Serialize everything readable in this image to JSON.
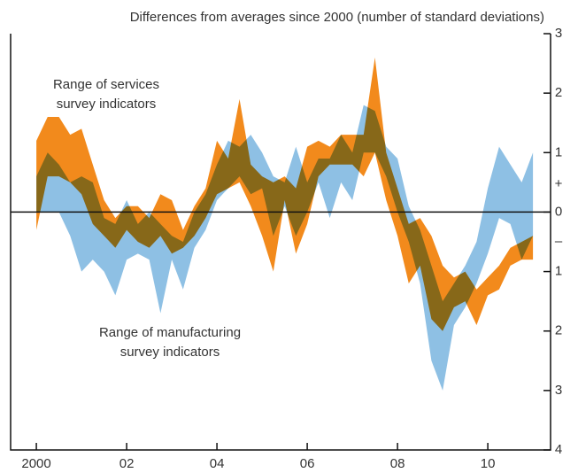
{
  "chart_data": {
    "type": "range-area",
    "title": "Differences from averages since 2000 (number of standard deviations)",
    "x": [
      2000.0,
      2000.25,
      2000.5,
      2000.75,
      2001.0,
      2001.25,
      2001.5,
      2001.75,
      2002.0,
      2002.25,
      2002.5,
      2002.75,
      2003.0,
      2003.25,
      2003.5,
      2003.75,
      2004.0,
      2004.25,
      2004.5,
      2004.75,
      2005.0,
      2005.25,
      2005.5,
      2005.75,
      2006.0,
      2006.25,
      2006.5,
      2006.75,
      2007.0,
      2007.25,
      2007.5,
      2007.75,
      2008.0,
      2008.25,
      2008.5,
      2008.75,
      2009.0,
      2009.25,
      2009.5,
      2009.75,
      2010.0,
      2010.25,
      2010.5,
      2010.75,
      2011.0
    ],
    "series": [
      {
        "label_lines": [
          "Range of manufacturing",
          "survey indicators"
        ],
        "color": "#8ec0e4",
        "low": [
          0.0,
          0.0,
          0.0,
          -0.4,
          -1.0,
          -0.8,
          -1.0,
          -1.4,
          -0.8,
          -0.7,
          -0.8,
          -1.7,
          -0.8,
          -1.3,
          -0.6,
          -0.3,
          0.2,
          0.4,
          0.6,
          0.3,
          0.4,
          -0.4,
          0.1,
          -0.4,
          0.0,
          0.5,
          -0.1,
          0.5,
          0.2,
          1.0,
          1.0,
          0.6,
          0.0,
          -0.5,
          -1.2,
          -2.5,
          -3.0,
          -1.9,
          -1.6,
          -1.2,
          -0.7,
          -0.1,
          -0.2,
          -0.8,
          -0.4
        ],
        "high": [
          0.6,
          1.0,
          0.8,
          0.5,
          0.6,
          0.5,
          -0.1,
          -0.2,
          0.2,
          -0.2,
          0.0,
          -0.2,
          -0.4,
          -0.5,
          0.0,
          0.3,
          0.8,
          1.2,
          1.1,
          1.3,
          1.0,
          0.6,
          0.5,
          1.1,
          0.5,
          0.9,
          0.9,
          1.3,
          1.0,
          1.8,
          1.7,
          1.1,
          0.9,
          0.1,
          -0.3,
          -0.9,
          -1.5,
          -1.2,
          -0.9,
          -0.5,
          0.4,
          1.1,
          0.8,
          0.5,
          1.0
        ]
      },
      {
        "label_lines": [
          "Range of services",
          "survey indicators"
        ],
        "color": "#f28a1c",
        "low": [
          -0.3,
          0.6,
          0.6,
          0.5,
          0.3,
          -0.2,
          -0.4,
          -0.6,
          -0.3,
          -0.5,
          -0.6,
          -0.4,
          -0.7,
          -0.6,
          -0.4,
          -0.1,
          0.3,
          0.4,
          0.5,
          0.1,
          -0.4,
          -1.0,
          0.2,
          -0.7,
          -0.2,
          0.6,
          0.8,
          0.8,
          0.8,
          0.6,
          1.0,
          0.2,
          -0.4,
          -1.2,
          -0.9,
          -1.8,
          -2.0,
          -1.6,
          -1.5,
          -1.9,
          -1.4,
          -1.3,
          -0.9,
          -0.8,
          -0.8
        ],
        "high": [
          1.2,
          1.6,
          1.6,
          1.3,
          1.4,
          0.8,
          0.2,
          -0.1,
          0.1,
          0.1,
          -0.1,
          0.3,
          0.2,
          -0.3,
          0.1,
          0.4,
          1.2,
          0.9,
          1.9,
          0.8,
          0.6,
          0.5,
          0.6,
          0.4,
          1.1,
          1.2,
          1.1,
          1.3,
          1.3,
          1.3,
          2.6,
          1.0,
          0.4,
          -0.2,
          -0.1,
          -0.4,
          -0.9,
          -1.1,
          -1.0,
          -1.3,
          -1.1,
          -0.9,
          -0.6,
          -0.5,
          -0.4
        ]
      }
    ],
    "xlim": [
      1999.43,
      2011.39
    ],
    "xticks": [
      2000,
      {
        "value": 2002,
        "label": "02"
      },
      {
        "value": 2004,
        "label": "04"
      },
      {
        "value": 2006,
        "label": "06"
      },
      {
        "value": 2008,
        "label": "08"
      },
      {
        "value": 2010,
        "label": "10"
      }
    ],
    "ylim": [
      -4,
      3
    ],
    "yticks": [
      3,
      2,
      1,
      0,
      {
        "value": -1,
        "label": "1"
      },
      {
        "value": -2,
        "label": "2"
      },
      {
        "value": -3,
        "label": "3"
      },
      {
        "value": -4,
        "label": "4"
      }
    ],
    "sign_labels": {
      "positive": "+",
      "negative": "–"
    }
  }
}
